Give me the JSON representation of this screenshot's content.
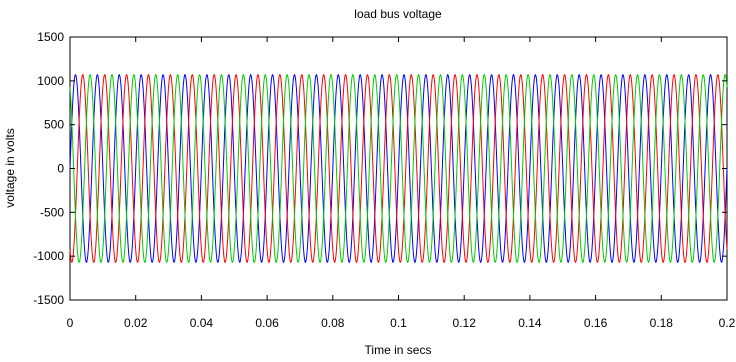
{
  "chart_data": {
    "type": "line",
    "title": "load bus voltage",
    "xlabel": "Time in secs",
    "ylabel": "voltage in volts",
    "xlim": [
      0,
      0.2
    ],
    "ylim": [
      -1500,
      1500
    ],
    "x_ticks": [
      "0",
      "0.02",
      "0.04",
      "0.06",
      "0.08",
      "0.1",
      "0.12",
      "0.14",
      "0.16",
      "0.18",
      "0.2"
    ],
    "y_ticks": [
      "1500",
      "1000",
      "500",
      "0",
      "-500",
      "-1000",
      "-1500"
    ],
    "grid": false,
    "legend": "none",
    "waveform": {
      "kind": "sinusoid",
      "amplitude": 1070,
      "frequency_hz": 150,
      "x_start": 0,
      "x_end": 0.2
    },
    "series": [
      {
        "color": "#0000ff",
        "phase_deg": 0
      },
      {
        "color": "#ff0000",
        "phase_deg": -120
      },
      {
        "color": "#00cc00",
        "phase_deg": 120
      }
    ]
  }
}
